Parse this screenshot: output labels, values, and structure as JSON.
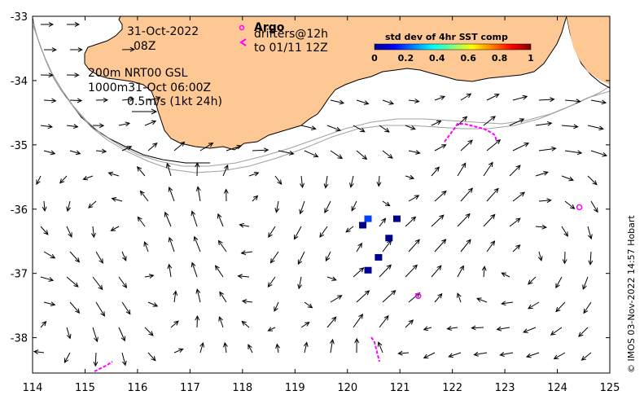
{
  "map": {
    "date": "31-Oct-2022",
    "time": "08Z",
    "model_line1": "200m  NRT00 GSL",
    "model_line2": "1000m31-Oct 06:00Z",
    "scale_label": "0.5m/s (1kt 24h)",
    "argo_label": "Argo",
    "drifters_line1": "drifters@12h",
    "drifters_line2": "to 01/11 12Z",
    "credit": "© IMOS 03-Nov-2022 14:57 Hobart",
    "lon_ticks": [
      "114",
      "115",
      "116",
      "117",
      "118",
      "119",
      "120",
      "121",
      "122",
      "123",
      "124",
      "125"
    ],
    "lat_ticks": [
      "-33",
      "-34",
      "-35",
      "-36",
      "-37",
      "-38"
    ],
    "colorbar": {
      "title": "std dev of 4hr SST comp",
      "ticks": [
        "0",
        "0.2",
        "0.4",
        "0.6",
        "0.8",
        "1"
      ]
    },
    "colors": {
      "land": "#fdc894",
      "drifter": "#ff00ff",
      "argo": "#ff00ff",
      "contour": "#a0a0a0"
    },
    "argo_floats": [
      {
        "lon": 124.42,
        "lat": -35.97
      },
      {
        "lon": 121.35,
        "lat": -37.35
      }
    ],
    "sst_patches": [
      {
        "lon": 120.3,
        "lat": -36.25,
        "value": 0.05
      },
      {
        "lon": 120.4,
        "lat": -36.15,
        "value": 0.2
      },
      {
        "lon": 120.95,
        "lat": -36.15,
        "value": 0.05
      },
      {
        "lon": 120.8,
        "lat": -36.45,
        "value": 0.05
      },
      {
        "lon": 120.6,
        "lat": -36.75,
        "value": 0.05
      },
      {
        "lon": 120.4,
        "lat": -36.95,
        "value": 0.1
      }
    ]
  }
}
